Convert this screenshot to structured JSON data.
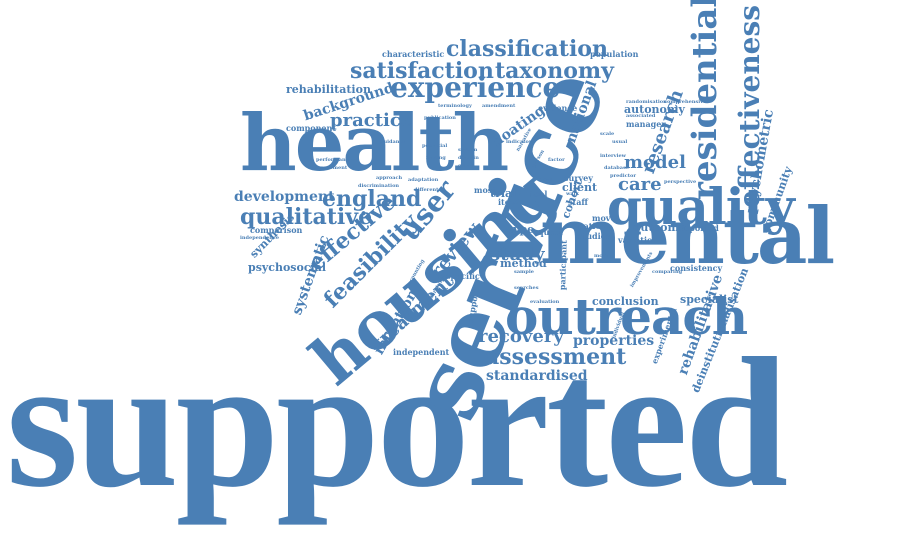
{
  "color": "#4a7fb5",
  "words": {
    "supported": "supported",
    "service": "service",
    "health": "health",
    "mental": "mental",
    "housing": "housing",
    "quality": "quality",
    "outreach": "outreach",
    "residential": "residential",
    "effectiveness": "effectiveness",
    "experience": "experience",
    "classification": "classification",
    "satisfaction": "satisfaction",
    "taxonomy": "taxonomy",
    "user": "user",
    "england": "england",
    "qualitative": "qualitative",
    "effective": "effective",
    "feasibility": "feasibility",
    "assessment": "assessment",
    "recovery": "recovery",
    "treatment": "treatment",
    "practice": "practice",
    "background": "background",
    "rehabilitation": "rehabilitation",
    "development": "development",
    "systematic": "systematic",
    "review": "review",
    "study": "study",
    "care": "care",
    "model": "model",
    "research": "research",
    "psychometric": "psychometric",
    "community": "community",
    "autonomy": "autonomy",
    "national": "national",
    "floating": "floating",
    "intention": "intention",
    "standardised": "standardised",
    "properties": "properties",
    "conclusion": "conclusion",
    "specialist": "specialist",
    "outcome": "outcome",
    "psychosocial": "psychosocial",
    "synthesis": "synthesis",
    "comparison": "comparison",
    "deinstitutionalisation": "deinstitutionalisation",
    "rehabilitative": "rehabilitative",
    "type": "type",
    "trial": "trial",
    "cohort": "cohort",
    "client": "client",
    "result": "result",
    "method": "method",
    "participant": "participant",
    "patient": "patient",
    "studies": "studies",
    "reported": "reported",
    "tool": "tool",
    "staff": "staff",
    "survey": "survey",
    "quest": "quest",
    "move": "move",
    "variation": "variation",
    "manager": "manager",
    "evidence": "evidence",
    "characteristic": "characteristic",
    "population": "population",
    "component": "component",
    "performance": "performance",
    "improvement": "improvement",
    "independent": "independent",
    "independence": "independence",
    "experimental": "experimental",
    "consistency": "consistency",
    "specific": "specific",
    "support": "support",
    "literature": "literature",
    "approach": "approach",
    "adaptation": "adaptation",
    "most": "most",
    "item": "item",
    "randomisation": "randomisation",
    "comprehensive": "comprehensive",
    "associated": "associated",
    "terminology": "terminology",
    "publication": "publication",
    "perspective": "perspective",
    "interview": "interview",
    "database": "database",
    "predictor": "predictor",
    "indicator": "indicator",
    "system": "system",
    "domain": "domain",
    "group": "group",
    "narrative": "narrative",
    "person": "person",
    "goal": "goal",
    "factor": "factor",
    "searches": "searches",
    "sample": "sample",
    "evaluation": "evaluation",
    "moving": "moving",
    "comparing": "comparing",
    "improvements": "improvements",
    "discrimination": "discrimination",
    "different": "different",
    "accounting": "accounting",
    "potential": "potential",
    "finding": "finding",
    "walk": "walk",
    "scale": "scale",
    "usual": "usual",
    "individual": "individual",
    "amendment": "amendment",
    "guidance": "guidance"
  }
}
